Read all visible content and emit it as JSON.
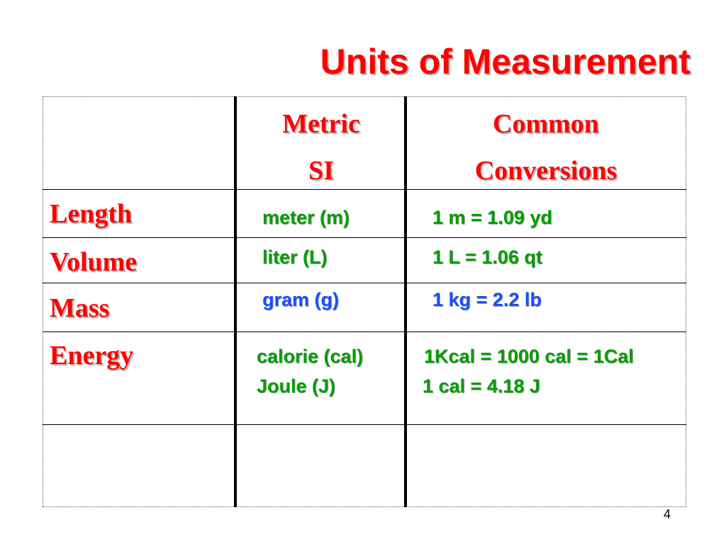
{
  "title": "Units of Measurement",
  "header": {
    "metric": [
      "Metric",
      "SI"
    ],
    "common": [
      "Common",
      "Conversions"
    ]
  },
  "rows": [
    {
      "label": "Length",
      "metric": [
        "meter (m)"
      ],
      "conversion": [
        "1 m = 1.09 yd"
      ],
      "color": "#00a000"
    },
    {
      "label": "Volume",
      "metric": [
        "liter (L)"
      ],
      "conversion": [
        "1 L = 1.06 qt"
      ],
      "color": "#00a000"
    },
    {
      "label": "Mass",
      "metric": [
        "gram (g)"
      ],
      "conversion": [
        "1 kg = 2.2 lb"
      ],
      "color": "#1a4fff"
    },
    {
      "label": "Energy",
      "metric": [
        "calorie (cal)",
        "Joule (J)"
      ],
      "conversion": [
        "1Kcal = 1000 cal = 1Cal",
        "1 cal = 4.18 J"
      ],
      "color": "#00a000"
    }
  ],
  "colors": {
    "title": "#ff0000",
    "labels": "#ff0000",
    "green": "#00a000",
    "blue": "#1a4fff"
  },
  "page_number": "4"
}
